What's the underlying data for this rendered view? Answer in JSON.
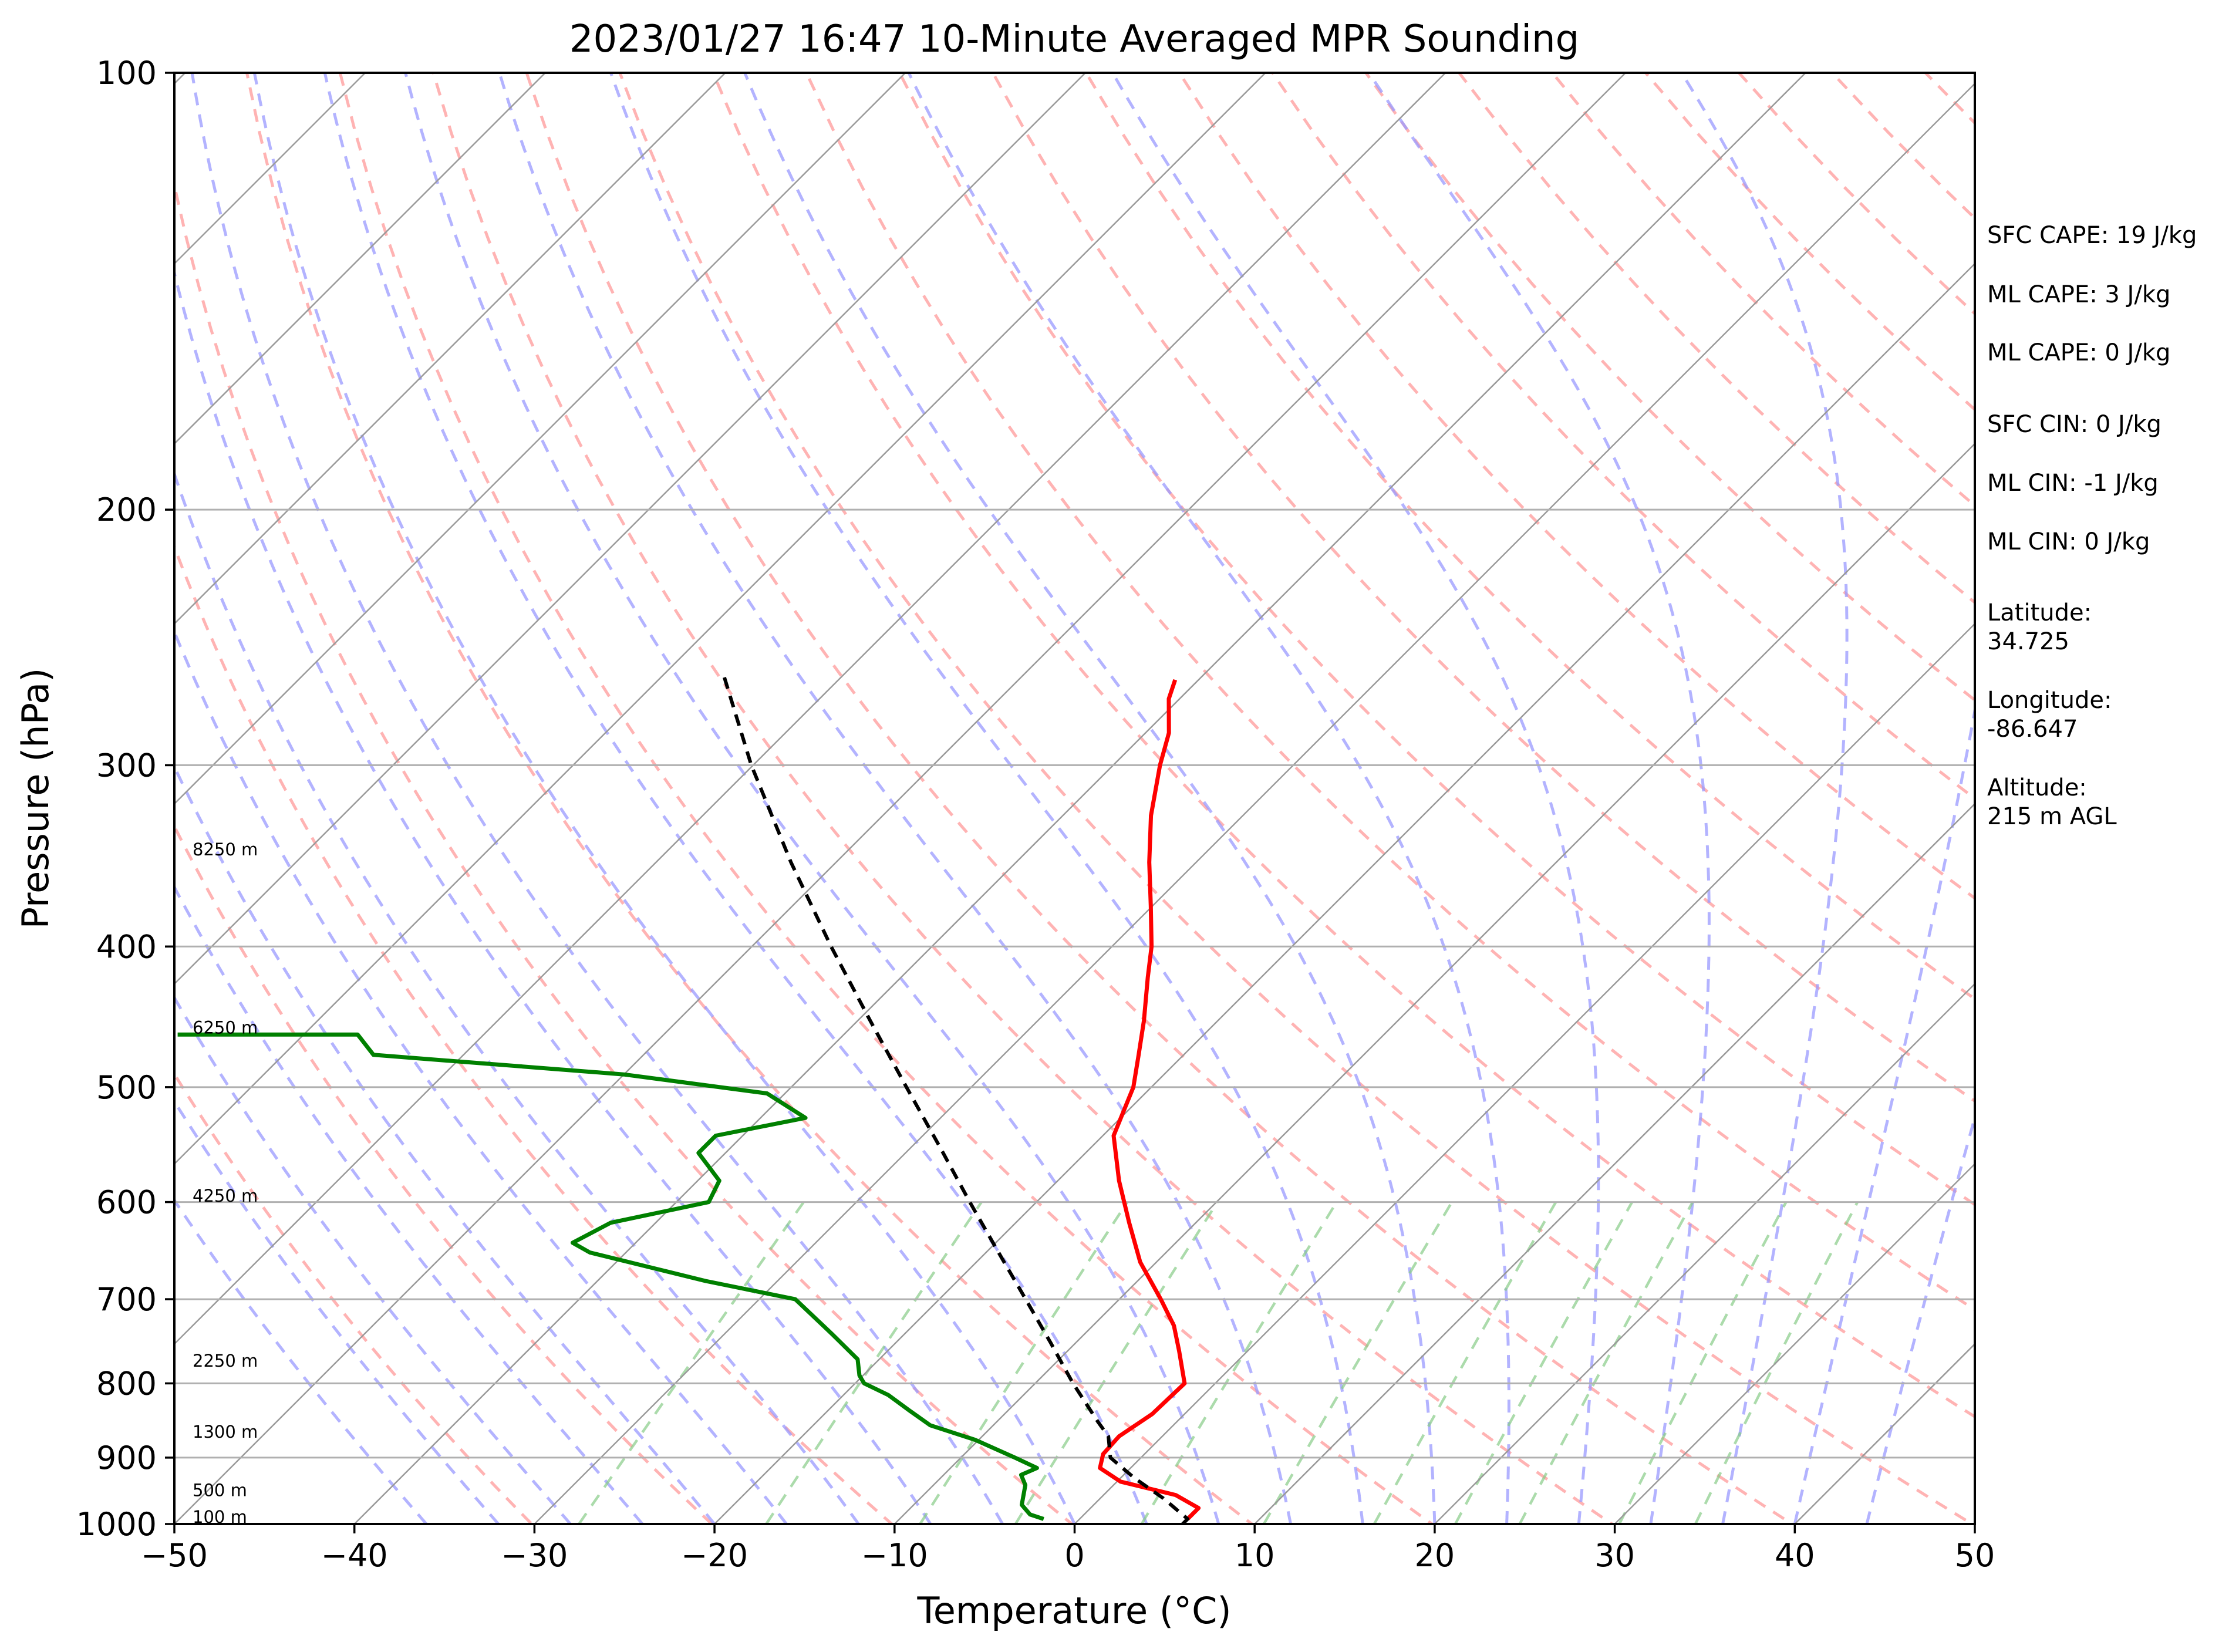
{
  "chart_data": {
    "type": "line",
    "title": "2023/01/27 16:47 10-Minute Averaged MPR Sounding",
    "xlabel": "Temperature (°C)",
    "ylabel": "Pressure (hPa)",
    "xlim": [
      -50,
      50
    ],
    "ylim": [
      1000,
      100
    ],
    "y_scale": "log",
    "x_skewed": true,
    "grid": true,
    "xticks": [
      -50,
      -40,
      -30,
      -20,
      -10,
      0,
      10,
      20,
      30,
      40,
      50
    ],
    "xtick_labels": [
      "−50",
      "−40",
      "−30",
      "−20",
      "−10",
      "0",
      "10",
      "20",
      "30",
      "40",
      "50"
    ],
    "yticks": [
      1000,
      900,
      800,
      700,
      600,
      500,
      400,
      300,
      200,
      100
    ],
    "ytick_labels": [
      "1000",
      "900",
      "800",
      "700",
      "600",
      "500",
      "400",
      "300",
      "200",
      "100"
    ],
    "series": [
      {
        "color": "#ff0000",
        "points": [
          {
            "p": 992,
            "t": 6.0
          },
          {
            "p": 975,
            "t": 6.0
          },
          {
            "p": 955,
            "t": 4.0
          },
          {
            "p": 935,
            "t": 0.2
          },
          {
            "p": 915,
            "t": -1.7
          },
          {
            "p": 895,
            "t": -2.3
          },
          {
            "p": 870,
            "t": -2.4
          },
          {
            "p": 840,
            "t": -1.8
          },
          {
            "p": 800,
            "t": -1.7
          },
          {
            "p": 760,
            "t": -3.8
          },
          {
            "p": 730,
            "t": -5.5
          },
          {
            "p": 700,
            "t": -7.7
          },
          {
            "p": 660,
            "t": -10.9
          },
          {
            "p": 620,
            "t": -13.7
          },
          {
            "p": 580,
            "t": -16.6
          },
          {
            "p": 540,
            "t": -19.4
          },
          {
            "p": 500,
            "t": -21.0
          },
          {
            "p": 475,
            "t": -22.5
          },
          {
            "p": 450,
            "t": -24.1
          },
          {
            "p": 420,
            "t": -26.3
          },
          {
            "p": 400,
            "t": -27.8
          },
          {
            "p": 375,
            "t": -30.1
          },
          {
            "p": 350,
            "t": -32.6
          },
          {
            "p": 325,
            "t": -35.1
          },
          {
            "p": 300,
            "t": -37.4
          },
          {
            "p": 285,
            "t": -38.7
          },
          {
            "p": 270,
            "t": -40.6
          },
          {
            "p": 262,
            "t": -41.3
          }
        ]
      },
      {
        "color": "#008000",
        "points": [
          {
            "p": 992,
            "t": -2.0
          },
          {
            "p": 985,
            "t": -3.0
          },
          {
            "p": 970,
            "t": -4.0
          },
          {
            "p": 940,
            "t": -4.9
          },
          {
            "p": 925,
            "t": -5.7
          },
          {
            "p": 915,
            "t": -5.2
          },
          {
            "p": 900,
            "t": -7.0
          },
          {
            "p": 875,
            "t": -10.2
          },
          {
            "p": 855,
            "t": -13.5
          },
          {
            "p": 835,
            "t": -15.5
          },
          {
            "p": 815,
            "t": -17.5
          },
          {
            "p": 800,
            "t": -19.5
          },
          {
            "p": 790,
            "t": -20.2
          },
          {
            "p": 770,
            "t": -21.2
          },
          {
            "p": 740,
            "t": -24.0
          },
          {
            "p": 700,
            "t": -28.0
          },
          {
            "p": 680,
            "t": -34.0
          },
          {
            "p": 650,
            "t": -42.0
          },
          {
            "p": 640,
            "t": -43.5
          },
          {
            "p": 620,
            "t": -42.5
          },
          {
            "p": 600,
            "t": -38.2
          },
          {
            "p": 580,
            "t": -38.8
          },
          {
            "p": 555,
            "t": -41.5
          },
          {
            "p": 540,
            "t": -41.5
          },
          {
            "p": 525,
            "t": -37.5
          },
          {
            "p": 505,
            "t": -41.0
          },
          {
            "p": 490,
            "t": -50.0
          },
          {
            "p": 475,
            "t": -65.0
          },
          {
            "p": 460,
            "t": -67.0
          },
          {
            "p": 460,
            "t": -77.0
          }
        ]
      },
      {
        "color": "#000000",
        "dashed": true,
        "points": [
          {
            "p": 1000,
            "t": 6.0
          },
          {
            "p": 992,
            "t": 6.0
          },
          {
            "p": 960,
            "t": 3.5
          },
          {
            "p": 930,
            "t": 0.8
          },
          {
            "p": 900,
            "t": -1.7
          },
          {
            "p": 870,
            "t": -3.0
          },
          {
            "p": 850,
            "t": -4.4
          },
          {
            "p": 800,
            "t": -7.9
          },
          {
            "p": 750,
            "t": -11.4
          },
          {
            "p": 700,
            "t": -15.2
          },
          {
            "p": 650,
            "t": -19.3
          },
          {
            "p": 600,
            "t": -23.7
          },
          {
            "p": 550,
            "t": -28.4
          },
          {
            "p": 500,
            "t": -33.6
          },
          {
            "p": 450,
            "t": -39.3
          },
          {
            "p": 400,
            "t": -45.6
          },
          {
            "p": 350,
            "t": -52.5
          },
          {
            "p": 300,
            "t": -60.1
          },
          {
            "p": 258,
            "t": -67.0
          }
        ]
      }
    ],
    "height_labels": [
      {
        "text": "100 m",
        "p": 989
      },
      {
        "text": "500 m",
        "p": 948
      },
      {
        "text": "1300 m",
        "p": 864
      },
      {
        "text": "2250 m",
        "p": 772
      },
      {
        "text": "4250 m",
        "p": 594
      },
      {
        "text": "6250 m",
        "p": 455
      },
      {
        "text": "8250 m",
        "p": 343
      }
    ]
  },
  "side_panel": {
    "sfc_cape": "SFC CAPE: 19 J/kg",
    "ml_cape_1": "ML CAPE: 3 J/kg",
    "ml_cape_2": "ML CAPE: 0 J/kg",
    "sfc_cin": "SFC CIN: 0 J/kg",
    "ml_cin_1": "ML CIN: -1 J/kg",
    "ml_cin_2": "ML CIN: 0 J/kg",
    "latitude_label": "Latitude:",
    "latitude_value": "34.725",
    "longitude_label": "Longitude:",
    "longitude_value": "-86.647",
    "altitude_label": "Altitude:",
    "altitude_value": "215 m AGL"
  }
}
